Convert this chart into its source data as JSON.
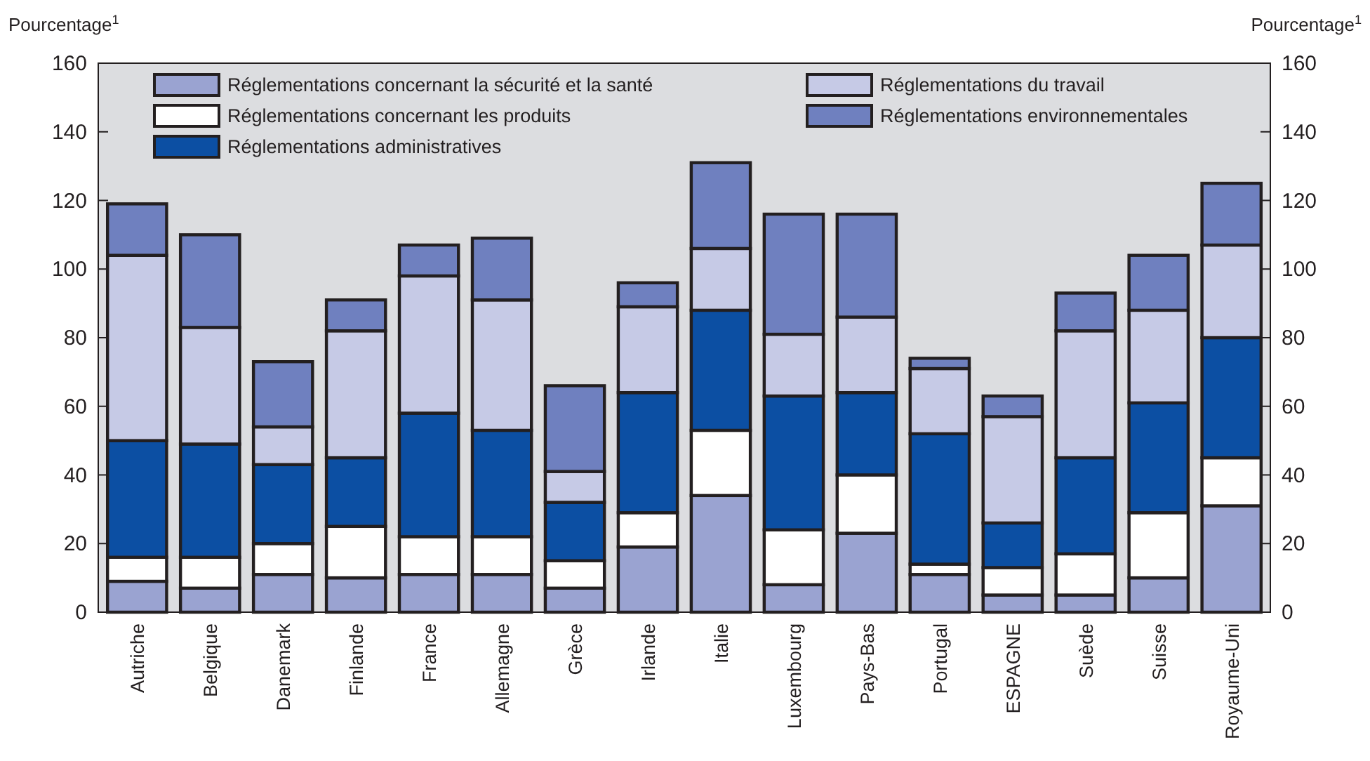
{
  "chart_data": {
    "type": "bar",
    "stacked": true,
    "ylabel": "Pourcentage$^{1}$",
    "y2label": "Pourcentage$^{1}$",
    "categories": [
      "Autriche",
      "Belgique",
      "Danemark",
      "Finlande",
      "France",
      "Allemagne",
      "Grèce",
      "Irlande",
      "Italie",
      "Luxembourg",
      "Pays-Bas",
      "Portugal",
      "ESPAGNE",
      "Suède",
      "Suisse",
      "Royaume-Uni"
    ],
    "series": [
      {
        "name": "Réglementations concernant la sécurité et la santé",
        "color": "#9aa3d1",
        "values": [
          9,
          7,
          11,
          10,
          11,
          11,
          7,
          19,
          34,
          8,
          23,
          11,
          5,
          5,
          10,
          31
        ]
      },
      {
        "name": "Réglementations concernant les produits",
        "color": "#ffffff",
        "values": [
          7,
          9,
          9,
          15,
          11,
          11,
          8,
          10,
          19,
          16,
          17,
          3,
          8,
          12,
          19,
          14
        ]
      },
      {
        "name": "Réglementations administratives",
        "color": "#0c4fa3",
        "values": [
          34,
          33,
          23,
          20,
          36,
          31,
          17,
          35,
          35,
          39,
          24,
          38,
          13,
          28,
          32,
          35
        ]
      },
      {
        "name": "Réglementations du travail",
        "color": "#c6cae6",
        "values": [
          54,
          34,
          11,
          37,
          40,
          38,
          9,
          25,
          18,
          18,
          22,
          19,
          31,
          37,
          27,
          27
        ]
      },
      {
        "name": "Réglementations environnementales",
        "color": "#6f80bf",
        "values": [
          15,
          27,
          19,
          9,
          9,
          18,
          25,
          7,
          25,
          35,
          30,
          3,
          6,
          11,
          16,
          18
        ]
      }
    ],
    "ylim": [
      0,
      160
    ],
    "yticks": [
      0,
      20,
      40,
      60,
      80,
      100,
      120,
      140,
      160
    ],
    "y2lim": [
      0,
      160
    ],
    "y2ticks": [
      0,
      20,
      40,
      60,
      80,
      100,
      120,
      140,
      160
    ],
    "grid": false,
    "legend": "top"
  }
}
